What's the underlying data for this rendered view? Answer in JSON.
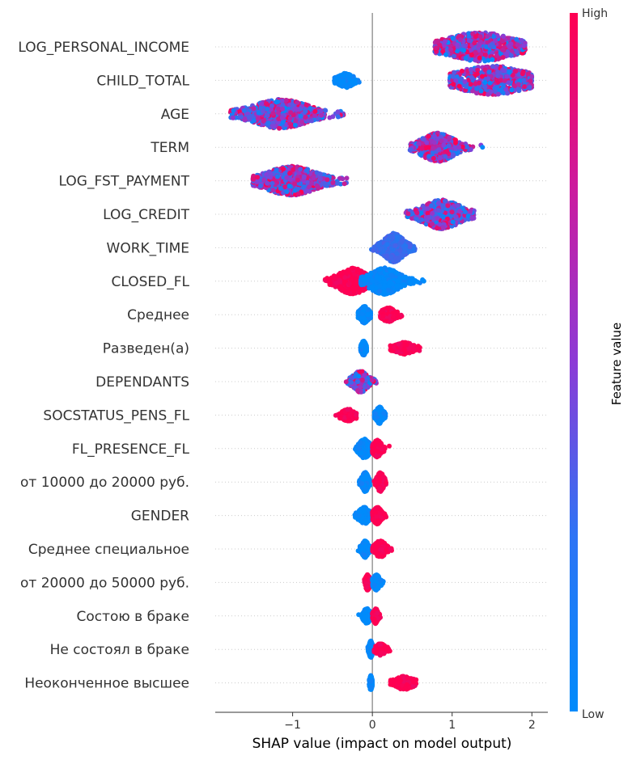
{
  "chart_data": {
    "type": "scatter",
    "subtype": "shap-beeswarm",
    "title": "",
    "xlabel": "SHAP value (impact on model output)",
    "xlim": [
      -1.97,
      2.2
    ],
    "xticks": [
      -1,
      0,
      1,
      2
    ],
    "xtick_labels": [
      "−1",
      "0",
      "1",
      "2"
    ],
    "zero_line": 0,
    "colorbar": {
      "title": "Feature value",
      "high_label": "High",
      "low_label": "Low",
      "low_color": "#008bfb",
      "high_color": "#ff0052"
    },
    "features": [
      {
        "name": "LOG_PERSONAL_INCOME",
        "groups": [
          {
            "min": 0.78,
            "max": 1.92,
            "center": 1.35,
            "width": 0.36,
            "val": "mixed",
            "n": 700
          }
        ]
      },
      {
        "name": "CHILD_TOTAL",
        "groups": [
          {
            "min": -0.48,
            "max": -0.16,
            "center": -0.33,
            "width": 0.07,
            "val": 0.0,
            "n": 200
          },
          {
            "min": 0.97,
            "max": 2.0,
            "center": 1.5,
            "width": 0.38,
            "val": "mixed",
            "n": 650
          }
        ]
      },
      {
        "name": "AGE",
        "groups": [
          {
            "min": -1.78,
            "max": -0.35,
            "center": -1.15,
            "width": 0.3,
            "val": "mixed",
            "n": 800
          }
        ]
      },
      {
        "name": "TERM",
        "groups": [
          {
            "min": 0.47,
            "max": 1.57,
            "center": 0.82,
            "width": 0.17,
            "val": "mixed",
            "n": 600
          }
        ]
      },
      {
        "name": "LOG_FST_PAYMENT",
        "groups": [
          {
            "min": -1.5,
            "max": -0.12,
            "center": -1.02,
            "width": 0.27,
            "val": "mixed",
            "n": 750
          }
        ]
      },
      {
        "name": "LOG_CREDIT",
        "groups": [
          {
            "min": 0.42,
            "max": 1.28,
            "center": 0.87,
            "width": 0.2,
            "val": "mixed",
            "n": 700
          }
        ]
      },
      {
        "name": "WORK_TIME",
        "groups": [
          {
            "min": -0.45,
            "max": 0.55,
            "center": 0.27,
            "width": 0.1,
            "val": 0.2,
            "n": 500
          }
        ]
      },
      {
        "name": "CLOSED_FL",
        "groups": [
          {
            "min": -0.6,
            "max": -0.05,
            "center": -0.25,
            "width": 0.14,
            "val": 1.0,
            "n": 450
          },
          {
            "min": -0.15,
            "max": 0.65,
            "center": 0.15,
            "width": 0.15,
            "val": 0.0,
            "n": 450
          }
        ]
      },
      {
        "name": "Среднее",
        "groups": [
          {
            "min": -0.18,
            "max": -0.02,
            "center": -0.1,
            "width": 0.04,
            "val": 0.0,
            "n": 250
          },
          {
            "min": 0.1,
            "max": 0.42,
            "center": 0.2,
            "width": 0.06,
            "val": 1.0,
            "n": 200
          }
        ]
      },
      {
        "name": "Разведен(а)",
        "groups": [
          {
            "min": -0.15,
            "max": -0.07,
            "center": -0.11,
            "width": 0.02,
            "val": 0.0,
            "n": 200
          },
          {
            "min": 0.2,
            "max": 0.6,
            "center": 0.4,
            "width": 0.08,
            "val": 1.0,
            "n": 150
          }
        ]
      },
      {
        "name": "DEPENDANTS",
        "groups": [
          {
            "min": -0.38,
            "max": 0.05,
            "center": -0.15,
            "width": 0.07,
            "val": "mixed",
            "n": 350
          }
        ]
      },
      {
        "name": "SOCSTATUS_PENS_FL",
        "groups": [
          {
            "min": -0.52,
            "max": -0.2,
            "center": -0.3,
            "width": 0.06,
            "val": 1.0,
            "n": 150
          },
          {
            "min": 0.02,
            "max": 0.17,
            "center": 0.09,
            "width": 0.03,
            "val": 0.0,
            "n": 250
          }
        ]
      },
      {
        "name": "FL_PRESENCE_FL",
        "groups": [
          {
            "min": -0.22,
            "max": -0.01,
            "center": -0.1,
            "width": 0.05,
            "val": 0.0,
            "n": 300
          },
          {
            "min": 0.0,
            "max": 0.25,
            "center": 0.06,
            "width": 0.04,
            "val": 1.0,
            "n": 250
          }
        ]
      },
      {
        "name": "от 10000 до 20000 руб.",
        "groups": [
          {
            "min": -0.17,
            "max": -0.03,
            "center": -0.09,
            "width": 0.03,
            "val": 0.0,
            "n": 300
          },
          {
            "min": 0.02,
            "max": 0.17,
            "center": 0.1,
            "width": 0.03,
            "val": 1.0,
            "n": 300
          }
        ]
      },
      {
        "name": "GENDER",
        "groups": [
          {
            "min": -0.32,
            "max": -0.02,
            "center": -0.1,
            "width": 0.05,
            "val": 0.0,
            "n": 250
          },
          {
            "min": 0.0,
            "max": 0.2,
            "center": 0.06,
            "width": 0.04,
            "val": 1.0,
            "n": 250
          }
        ]
      },
      {
        "name": "Среднее специальное",
        "groups": [
          {
            "min": -0.18,
            "max": -0.02,
            "center": -0.09,
            "width": 0.03,
            "val": 0.0,
            "n": 250
          },
          {
            "min": 0.0,
            "max": 0.25,
            "center": 0.1,
            "width": 0.05,
            "val": 1.0,
            "n": 250
          }
        ]
      },
      {
        "name": "от 20000 до 50000 руб.",
        "groups": [
          {
            "min": -0.12,
            "max": 0.0,
            "center": -0.06,
            "width": 0.02,
            "val": 1.0,
            "n": 220
          },
          {
            "min": 0.0,
            "max": 0.15,
            "center": 0.05,
            "width": 0.03,
            "val": 0.0,
            "n": 220
          }
        ]
      },
      {
        "name": "Состою в браке",
        "groups": [
          {
            "min": -0.18,
            "max": -0.01,
            "center": -0.07,
            "width": 0.03,
            "val": 0.0,
            "n": 220
          },
          {
            "min": 0.0,
            "max": 0.1,
            "center": 0.04,
            "width": 0.02,
            "val": 1.0,
            "n": 220
          }
        ]
      },
      {
        "name": "Не состоял в браке",
        "groups": [
          {
            "min": -0.06,
            "max": 0.02,
            "center": -0.02,
            "width": 0.015,
            "val": 0.0,
            "n": 250
          },
          {
            "min": 0.02,
            "max": 0.25,
            "center": 0.1,
            "width": 0.04,
            "val": 1.0,
            "n": 150
          }
        ]
      },
      {
        "name": "Неоконченное высшее",
        "groups": [
          {
            "min": -0.04,
            "max": 0.0,
            "center": -0.02,
            "width": 0.01,
            "val": 0.0,
            "n": 200
          },
          {
            "min": 0.22,
            "max": 0.55,
            "center": 0.4,
            "width": 0.08,
            "val": 1.0,
            "n": 180
          }
        ]
      }
    ]
  }
}
